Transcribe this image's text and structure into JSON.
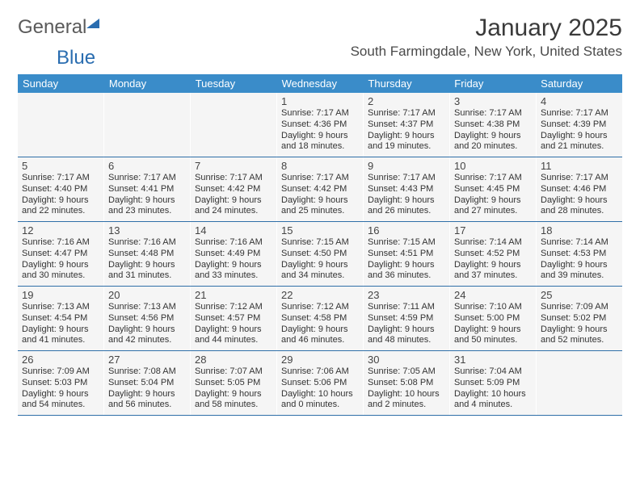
{
  "logo": {
    "text1": "General",
    "text2": "Blue"
  },
  "title": "January 2025",
  "location": "South Farmingdale, New York, United States",
  "colors": {
    "header_bg": "#3a8cc9",
    "border": "#2f6fa8",
    "cell_bg": "#f5f5f5",
    "text_dark": "#333333",
    "logo_blue": "#2a6db0"
  },
  "weekdays": [
    "Sunday",
    "Monday",
    "Tuesday",
    "Wednesday",
    "Thursday",
    "Friday",
    "Saturday"
  ],
  "weeks": [
    [
      {
        "day": "",
        "sunrise": "",
        "sunset": "",
        "daylight1": "",
        "daylight2": ""
      },
      {
        "day": "",
        "sunrise": "",
        "sunset": "",
        "daylight1": "",
        "daylight2": ""
      },
      {
        "day": "",
        "sunrise": "",
        "sunset": "",
        "daylight1": "",
        "daylight2": ""
      },
      {
        "day": "1",
        "sunrise": "Sunrise: 7:17 AM",
        "sunset": "Sunset: 4:36 PM",
        "daylight1": "Daylight: 9 hours",
        "daylight2": "and 18 minutes."
      },
      {
        "day": "2",
        "sunrise": "Sunrise: 7:17 AM",
        "sunset": "Sunset: 4:37 PM",
        "daylight1": "Daylight: 9 hours",
        "daylight2": "and 19 minutes."
      },
      {
        "day": "3",
        "sunrise": "Sunrise: 7:17 AM",
        "sunset": "Sunset: 4:38 PM",
        "daylight1": "Daylight: 9 hours",
        "daylight2": "and 20 minutes."
      },
      {
        "day": "4",
        "sunrise": "Sunrise: 7:17 AM",
        "sunset": "Sunset: 4:39 PM",
        "daylight1": "Daylight: 9 hours",
        "daylight2": "and 21 minutes."
      }
    ],
    [
      {
        "day": "5",
        "sunrise": "Sunrise: 7:17 AM",
        "sunset": "Sunset: 4:40 PM",
        "daylight1": "Daylight: 9 hours",
        "daylight2": "and 22 minutes."
      },
      {
        "day": "6",
        "sunrise": "Sunrise: 7:17 AM",
        "sunset": "Sunset: 4:41 PM",
        "daylight1": "Daylight: 9 hours",
        "daylight2": "and 23 minutes."
      },
      {
        "day": "7",
        "sunrise": "Sunrise: 7:17 AM",
        "sunset": "Sunset: 4:42 PM",
        "daylight1": "Daylight: 9 hours",
        "daylight2": "and 24 minutes."
      },
      {
        "day": "8",
        "sunrise": "Sunrise: 7:17 AM",
        "sunset": "Sunset: 4:42 PM",
        "daylight1": "Daylight: 9 hours",
        "daylight2": "and 25 minutes."
      },
      {
        "day": "9",
        "sunrise": "Sunrise: 7:17 AM",
        "sunset": "Sunset: 4:43 PM",
        "daylight1": "Daylight: 9 hours",
        "daylight2": "and 26 minutes."
      },
      {
        "day": "10",
        "sunrise": "Sunrise: 7:17 AM",
        "sunset": "Sunset: 4:45 PM",
        "daylight1": "Daylight: 9 hours",
        "daylight2": "and 27 minutes."
      },
      {
        "day": "11",
        "sunrise": "Sunrise: 7:17 AM",
        "sunset": "Sunset: 4:46 PM",
        "daylight1": "Daylight: 9 hours",
        "daylight2": "and 28 minutes."
      }
    ],
    [
      {
        "day": "12",
        "sunrise": "Sunrise: 7:16 AM",
        "sunset": "Sunset: 4:47 PM",
        "daylight1": "Daylight: 9 hours",
        "daylight2": "and 30 minutes."
      },
      {
        "day": "13",
        "sunrise": "Sunrise: 7:16 AM",
        "sunset": "Sunset: 4:48 PM",
        "daylight1": "Daylight: 9 hours",
        "daylight2": "and 31 minutes."
      },
      {
        "day": "14",
        "sunrise": "Sunrise: 7:16 AM",
        "sunset": "Sunset: 4:49 PM",
        "daylight1": "Daylight: 9 hours",
        "daylight2": "and 33 minutes."
      },
      {
        "day": "15",
        "sunrise": "Sunrise: 7:15 AM",
        "sunset": "Sunset: 4:50 PM",
        "daylight1": "Daylight: 9 hours",
        "daylight2": "and 34 minutes."
      },
      {
        "day": "16",
        "sunrise": "Sunrise: 7:15 AM",
        "sunset": "Sunset: 4:51 PM",
        "daylight1": "Daylight: 9 hours",
        "daylight2": "and 36 minutes."
      },
      {
        "day": "17",
        "sunrise": "Sunrise: 7:14 AM",
        "sunset": "Sunset: 4:52 PM",
        "daylight1": "Daylight: 9 hours",
        "daylight2": "and 37 minutes."
      },
      {
        "day": "18",
        "sunrise": "Sunrise: 7:14 AM",
        "sunset": "Sunset: 4:53 PM",
        "daylight1": "Daylight: 9 hours",
        "daylight2": "and 39 minutes."
      }
    ],
    [
      {
        "day": "19",
        "sunrise": "Sunrise: 7:13 AM",
        "sunset": "Sunset: 4:54 PM",
        "daylight1": "Daylight: 9 hours",
        "daylight2": "and 41 minutes."
      },
      {
        "day": "20",
        "sunrise": "Sunrise: 7:13 AM",
        "sunset": "Sunset: 4:56 PM",
        "daylight1": "Daylight: 9 hours",
        "daylight2": "and 42 minutes."
      },
      {
        "day": "21",
        "sunrise": "Sunrise: 7:12 AM",
        "sunset": "Sunset: 4:57 PM",
        "daylight1": "Daylight: 9 hours",
        "daylight2": "and 44 minutes."
      },
      {
        "day": "22",
        "sunrise": "Sunrise: 7:12 AM",
        "sunset": "Sunset: 4:58 PM",
        "daylight1": "Daylight: 9 hours",
        "daylight2": "and 46 minutes."
      },
      {
        "day": "23",
        "sunrise": "Sunrise: 7:11 AM",
        "sunset": "Sunset: 4:59 PM",
        "daylight1": "Daylight: 9 hours",
        "daylight2": "and 48 minutes."
      },
      {
        "day": "24",
        "sunrise": "Sunrise: 7:10 AM",
        "sunset": "Sunset: 5:00 PM",
        "daylight1": "Daylight: 9 hours",
        "daylight2": "and 50 minutes."
      },
      {
        "day": "25",
        "sunrise": "Sunrise: 7:09 AM",
        "sunset": "Sunset: 5:02 PM",
        "daylight1": "Daylight: 9 hours",
        "daylight2": "and 52 minutes."
      }
    ],
    [
      {
        "day": "26",
        "sunrise": "Sunrise: 7:09 AM",
        "sunset": "Sunset: 5:03 PM",
        "daylight1": "Daylight: 9 hours",
        "daylight2": "and 54 minutes."
      },
      {
        "day": "27",
        "sunrise": "Sunrise: 7:08 AM",
        "sunset": "Sunset: 5:04 PM",
        "daylight1": "Daylight: 9 hours",
        "daylight2": "and 56 minutes."
      },
      {
        "day": "28",
        "sunrise": "Sunrise: 7:07 AM",
        "sunset": "Sunset: 5:05 PM",
        "daylight1": "Daylight: 9 hours",
        "daylight2": "and 58 minutes."
      },
      {
        "day": "29",
        "sunrise": "Sunrise: 7:06 AM",
        "sunset": "Sunset: 5:06 PM",
        "daylight1": "Daylight: 10 hours",
        "daylight2": "and 0 minutes."
      },
      {
        "day": "30",
        "sunrise": "Sunrise: 7:05 AM",
        "sunset": "Sunset: 5:08 PM",
        "daylight1": "Daylight: 10 hours",
        "daylight2": "and 2 minutes."
      },
      {
        "day": "31",
        "sunrise": "Sunrise: 7:04 AM",
        "sunset": "Sunset: 5:09 PM",
        "daylight1": "Daylight: 10 hours",
        "daylight2": "and 4 minutes."
      },
      {
        "day": "",
        "sunrise": "",
        "sunset": "",
        "daylight1": "",
        "daylight2": ""
      }
    ]
  ]
}
